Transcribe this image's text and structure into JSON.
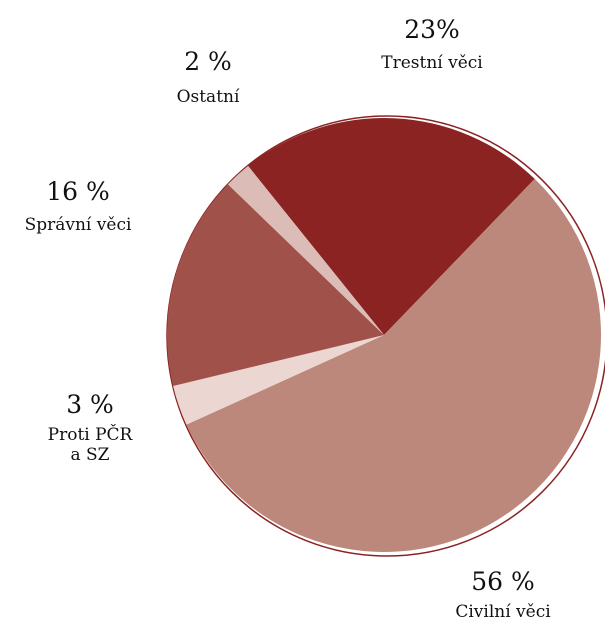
{
  "chart_data": {
    "type": "pie",
    "categories": [
      "Trestní věci",
      "Civilní věci",
      "Proti PČR a SZ",
      "Správní věci",
      "Ostatní"
    ],
    "values": [
      23,
      56,
      3,
      16,
      2
    ],
    "value_labels": [
      "23%",
      "56 %",
      "3 %",
      "16 %",
      "2 %"
    ],
    "colors": [
      "#8b2323",
      "#bd887c",
      "#ecd6d2",
      "#a0524a",
      "#dcbcb6"
    ]
  }
}
